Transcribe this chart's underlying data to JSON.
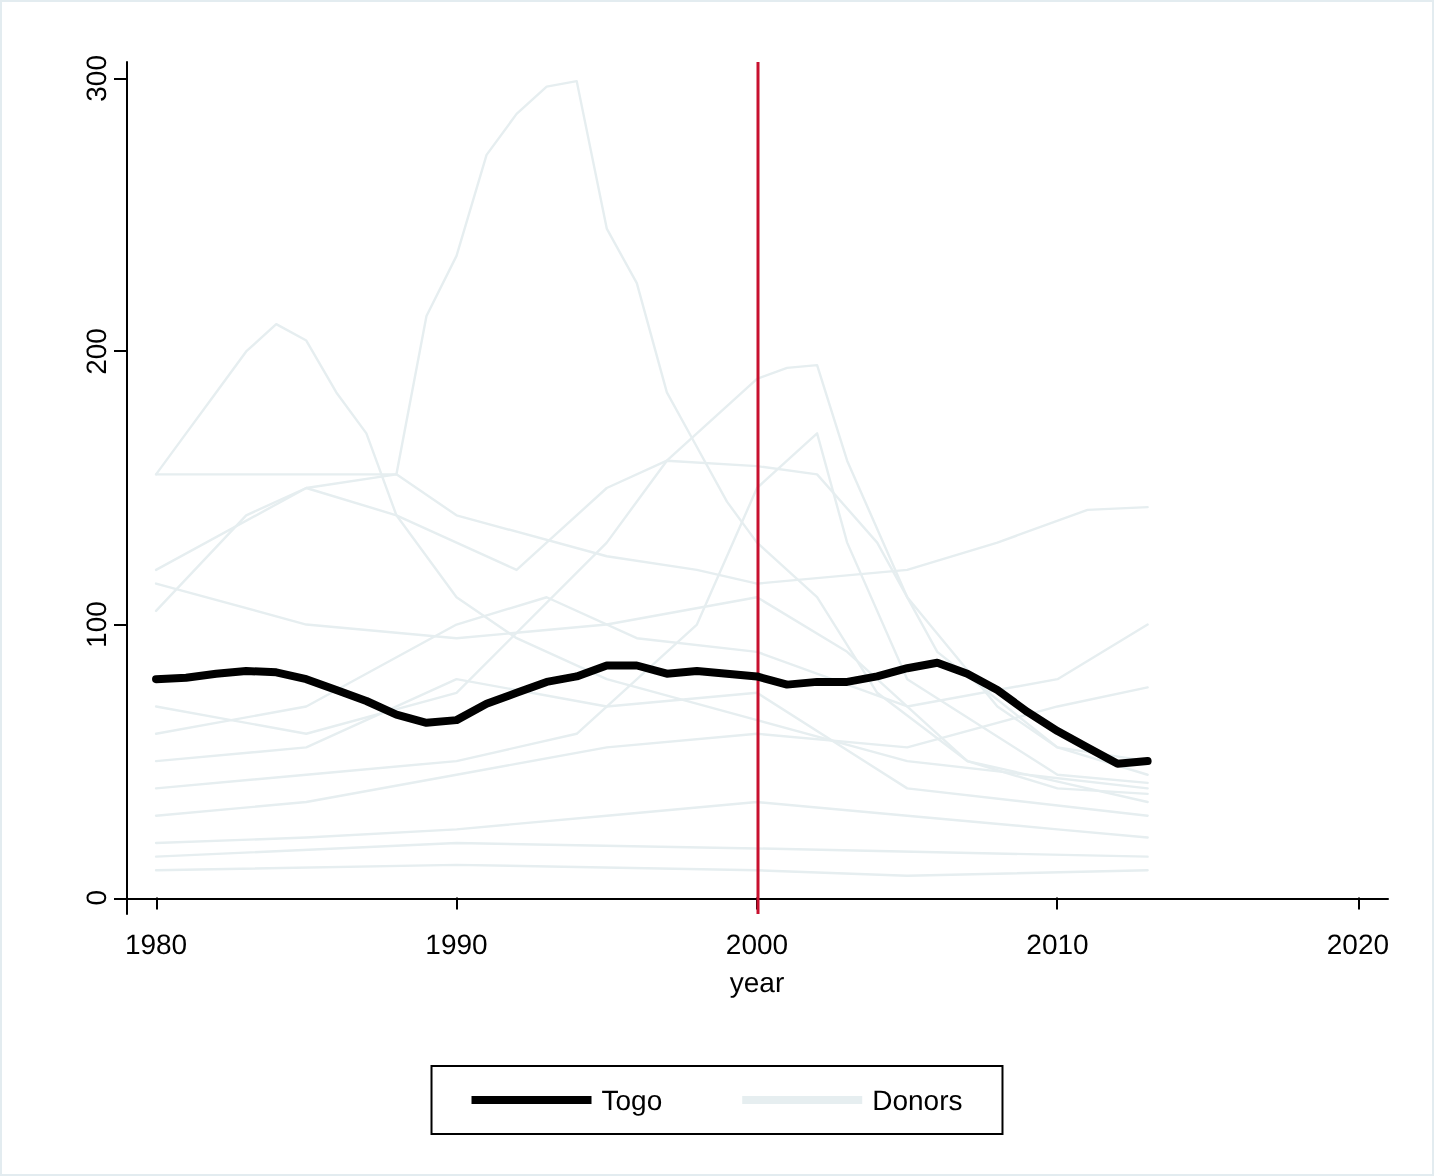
{
  "chart_data": {
    "type": "line",
    "xlabel": "year",
    "xlim": [
      1979,
      2021
    ],
    "xticks": [
      1980,
      1990,
      2000,
      2010,
      2020
    ],
    "ylim": [
      -6,
      306
    ],
    "yticks": [
      0,
      100,
      200,
      300
    ],
    "grid": false,
    "legend": "bottom",
    "marker": "none",
    "line_style": "solid",
    "ref_lines": [
      {
        "axis": "x",
        "value": 2000,
        "color": "#c8102e"
      }
    ],
    "series": [
      {
        "name": "Donors",
        "color": "#e6eef0",
        "x": [
          1980,
          1988,
          1989,
          1990,
          1991,
          1992,
          1993,
          1994,
          1995,
          1996,
          1997,
          1998,
          1999,
          2000,
          2002,
          2004,
          2007,
          2010,
          2013
        ],
        "values": [
          155,
          155,
          213,
          235,
          272,
          287,
          297,
          299,
          245,
          225,
          185,
          165,
          145,
          130,
          110,
          75,
          50,
          40,
          38
        ]
      },
      {
        "color": "#e6eef0",
        "x": [
          1980,
          1981,
          1982,
          1983,
          1984,
          1985,
          1986,
          1987,
          1988,
          1990,
          1992,
          1995,
          2000,
          2005,
          2013
        ],
        "values": [
          155,
          170,
          185,
          200,
          210,
          204,
          185,
          170,
          140,
          110,
          95,
          80,
          65,
          50,
          40
        ]
      },
      {
        "color": "#e6eef0",
        "x": [
          1980,
          1985,
          1990,
          1995,
          1997,
          1999,
          2000,
          2001,
          2002,
          2003,
          2005,
          2008,
          2010,
          2013
        ],
        "values": [
          70,
          60,
          75,
          130,
          160,
          180,
          190,
          194,
          195,
          160,
          110,
          70,
          55,
          50
        ]
      },
      {
        "color": "#e6eef0",
        "x": [
          1980,
          1985,
          1988,
          1990,
          1995,
          1998,
          2000,
          2005,
          2008,
          2011,
          2013
        ],
        "values": [
          120,
          150,
          155,
          140,
          125,
          120,
          115,
          120,
          130,
          142,
          143
        ]
      },
      {
        "color": "#e6eef0",
        "x": [
          1980,
          1983,
          1985,
          1988,
          1992,
          1995,
          1997,
          2000,
          2002,
          2004,
          2006,
          2010,
          2013
        ],
        "values": [
          105,
          140,
          150,
          140,
          120,
          150,
          160,
          158,
          155,
          130,
          90,
          55,
          45
        ]
      },
      {
        "color": "#e6eef0",
        "x": [
          1980,
          1985,
          1990,
          1994,
          1998,
          2000,
          2001,
          2002,
          2003,
          2005,
          2010,
          2013
        ],
        "values": [
          40,
          45,
          50,
          60,
          100,
          150,
          160,
          170,
          130,
          80,
          45,
          42
        ]
      },
      {
        "color": "#e6eef0",
        "x": [
          1980,
          1985,
          1990,
          1993,
          1996,
          2000,
          2005,
          2010,
          2013
        ],
        "values": [
          60,
          70,
          100,
          110,
          95,
          90,
          70,
          80,
          100
        ]
      },
      {
        "color": "#e6eef0",
        "x": [
          1980,
          1985,
          1990,
          1995,
          2000,
          2005,
          2010,
          2013
        ],
        "values": [
          30,
          35,
          45,
          55,
          60,
          55,
          70,
          77
        ]
      },
      {
        "color": "#e6eef0",
        "x": [
          1980,
          1985,
          1990,
          1995,
          2000,
          2005,
          2010,
          2013
        ],
        "values": [
          20,
          22,
          25,
          30,
          35,
          30,
          25,
          22
        ]
      },
      {
        "color": "#e6eef0",
        "x": [
          1980,
          1990,
          2000,
          2005,
          2013
        ],
        "values": [
          10,
          12,
          10,
          8,
          10
        ]
      },
      {
        "color": "#e6eef0",
        "x": [
          1980,
          1985,
          1990,
          1995,
          2000,
          2005,
          2013
        ],
        "values": [
          50,
          55,
          80,
          70,
          75,
          40,
          30
        ]
      },
      {
        "color": "#e6eef0",
        "x": [
          1980,
          1990,
          2000,
          2013
        ],
        "values": [
          15,
          20,
          18,
          15
        ]
      },
      {
        "color": "#e6eef0",
        "x": [
          1980,
          1985,
          1990,
          1995,
          2000,
          2003,
          2007,
          2013
        ],
        "values": [
          115,
          100,
          95,
          100,
          110,
          90,
          50,
          35
        ]
      },
      {
        "name": "Togo",
        "color": "#000000",
        "x": [
          1980,
          1981,
          1982,
          1983,
          1984,
          1985,
          1986,
          1987,
          1988,
          1989,
          1990,
          1991,
          1992,
          1993,
          1994,
          1995,
          1996,
          1997,
          1998,
          1999,
          2000,
          2001,
          2002,
          2003,
          2004,
          2005,
          2006,
          2007,
          2008,
          2009,
          2010,
          2011,
          2012,
          2013
        ],
        "values": [
          80,
          80.5,
          82,
          83,
          82.5,
          80,
          76,
          72,
          67,
          64,
          65,
          71,
          75,
          79,
          81,
          85,
          85,
          82,
          83,
          82,
          81,
          78,
          79,
          79,
          81,
          84,
          86,
          82,
          76,
          68,
          61,
          55,
          49,
          50
        ]
      }
    ]
  }
}
